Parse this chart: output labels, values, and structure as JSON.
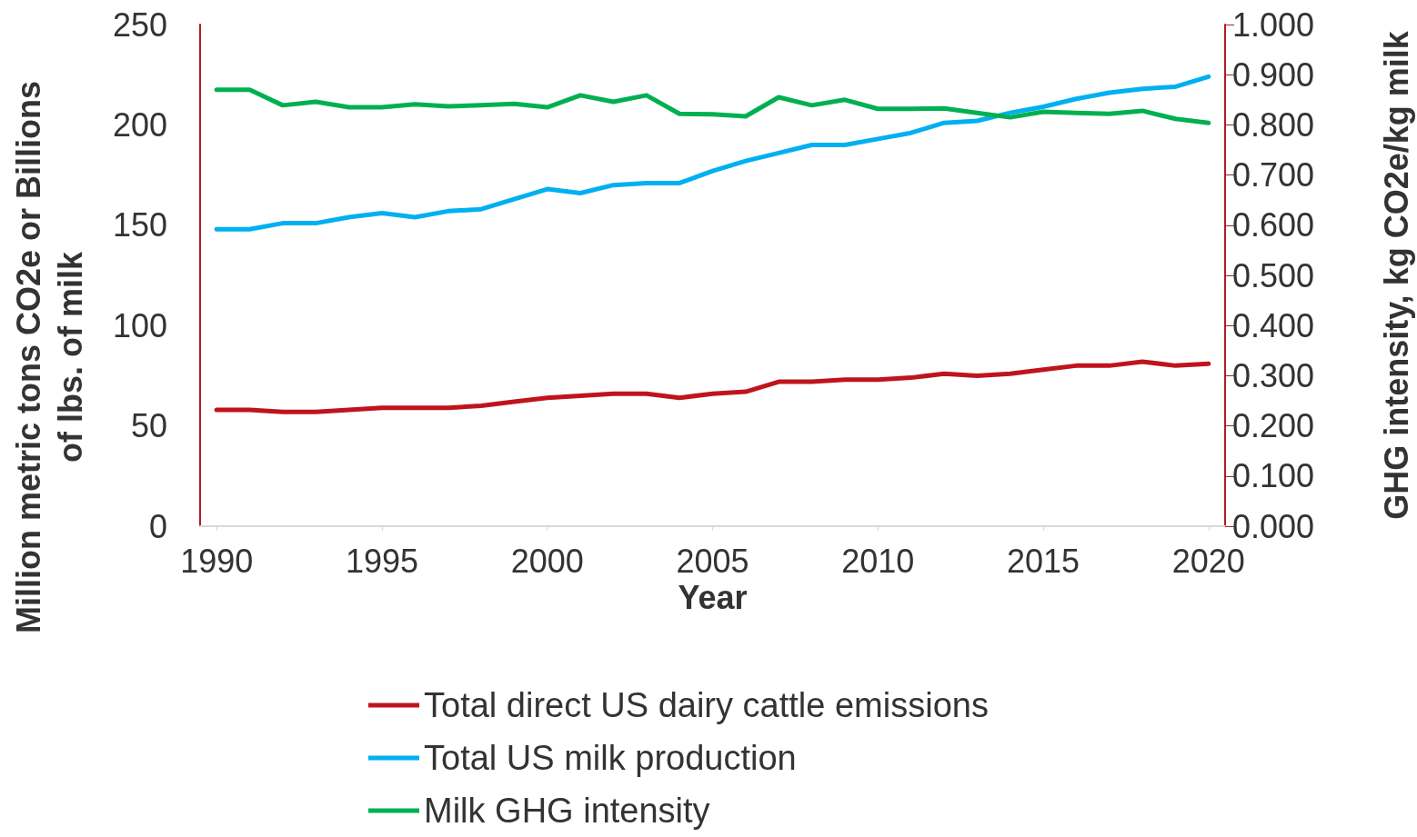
{
  "chart_data": {
    "type": "line",
    "xlabel": "Year",
    "ylabel": "Million metric tons CO2e or Billions of lbs. of milk",
    "y2label": "GHG intensity, kg CO2e/kg milk",
    "x": [
      1990,
      1991,
      1992,
      1993,
      1994,
      1995,
      1996,
      1997,
      1998,
      1999,
      2000,
      2001,
      2002,
      2003,
      2004,
      2005,
      2006,
      2007,
      2008,
      2009,
      2010,
      2011,
      2012,
      2013,
      2014,
      2015,
      2016,
      2017,
      2018,
      2019,
      2020
    ],
    "series": [
      {
        "name": "Total direct US dairy cattle emissions",
        "color": "#c0141c",
        "values": [
          58,
          58,
          57,
          57,
          58,
          59,
          59,
          59,
          60,
          62,
          64,
          65,
          66,
          66,
          64,
          66,
          67,
          72,
          72,
          73,
          73,
          74,
          76,
          75,
          76,
          78,
          80,
          80,
          82,
          80,
          81
        ]
      },
      {
        "name": "Total US milk production",
        "color": "#00b0f0",
        "values": [
          148,
          148,
          151,
          151,
          154,
          156,
          154,
          157,
          158,
          163,
          168,
          166,
          170,
          171,
          171,
          177,
          182,
          186,
          190,
          190,
          193,
          196,
          201,
          202,
          206,
          209,
          213,
          216,
          218,
          219,
          224
        ]
      },
      {
        "name": "Milk GHG intensity",
        "color": "#00b050",
        "axis": "y2",
        "values": [
          0.87,
          0.87,
          0.839,
          0.846,
          0.835,
          0.835,
          0.841,
          0.837,
          0.839,
          0.842,
          0.835,
          0.859,
          0.846,
          0.859,
          0.822,
          0.821,
          0.817,
          0.855,
          0.839,
          0.85,
          0.832,
          0.832,
          0.833,
          0.824,
          0.815,
          0.826,
          0.824,
          0.822,
          0.828,
          0.812,
          0.804
        ]
      }
    ],
    "xlim": [
      1989.5,
      2020.5
    ],
    "xticks": [
      1990,
      1995,
      2000,
      2005,
      2010,
      2015,
      2020
    ],
    "ylim": [
      0,
      250
    ],
    "yticks": [
      0,
      50,
      100,
      150,
      200,
      250
    ],
    "y2lim": [
      0,
      1
    ],
    "y2ticks": [
      {
        "value": 0,
        "label": "0.000"
      },
      {
        "value": 0.1,
        "label": "0.100"
      },
      {
        "value": 0.2,
        "label": "0.200"
      },
      {
        "value": 0.3,
        "label": "0.300"
      },
      {
        "value": 0.4,
        "label": "0.400"
      },
      {
        "value": 0.5,
        "label": "0.500"
      },
      {
        "value": 0.6,
        "label": "0.600"
      },
      {
        "value": 0.7,
        "label": "0.700"
      },
      {
        "value": 0.8,
        "label": "0.800"
      },
      {
        "value": 0.9,
        "label": "0.900"
      },
      {
        "value": 1,
        "label": "1.000"
      }
    ],
    "grid": false,
    "legend": "bottom",
    "marker": "none",
    "line_style": "solid"
  }
}
